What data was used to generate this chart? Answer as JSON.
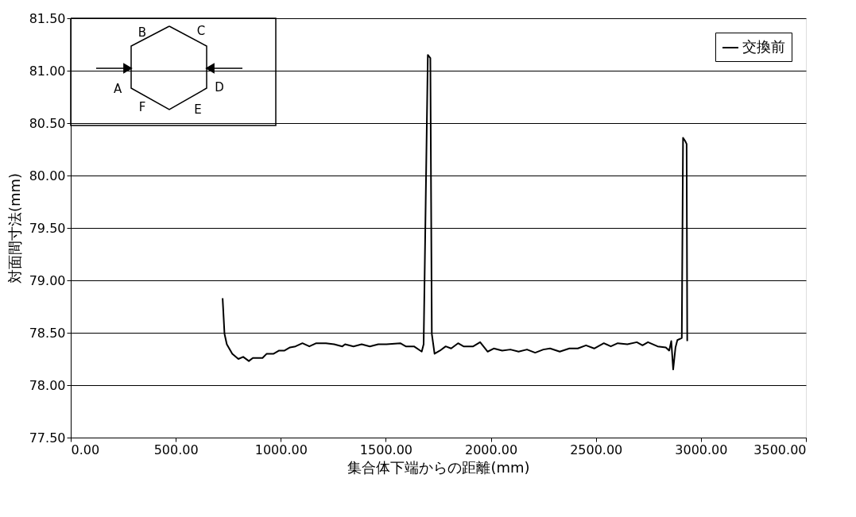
{
  "chart_data": {
    "type": "line",
    "xlabel": "集合体下端からの距離(mm)",
    "ylabel": "対面間寸法(mm)",
    "annotations": [
      "A",
      "B",
      "C",
      "D",
      "E",
      "F"
    ],
    "xlim": [
      0,
      3500
    ],
    "ylim": [
      77.5,
      81.5
    ],
    "xticks": [
      {
        "value": 0,
        "label": "0.00"
      },
      {
        "value": 500,
        "label": "500.00"
      },
      {
        "value": 1000,
        "label": "1000.00"
      },
      {
        "value": 1500,
        "label": "1500.00"
      },
      {
        "value": 2000,
        "label": "2000.00"
      },
      {
        "value": 2500,
        "label": "2500.00"
      },
      {
        "value": 3000,
        "label": "3000.00"
      },
      {
        "value": 3500,
        "label": "3500.00"
      }
    ],
    "yticks": [
      {
        "value": 77.5,
        "label": "77.50"
      },
      {
        "value": 78,
        "label": "78.00"
      },
      {
        "value": 78.5,
        "label": "78.50"
      },
      {
        "value": 79,
        "label": "79.00"
      },
      {
        "value": 79.5,
        "label": "79.50"
      },
      {
        "value": 80,
        "label": "80.00"
      },
      {
        "value": 80.5,
        "label": "80.50"
      },
      {
        "value": 81,
        "label": "81.00"
      },
      {
        "value": 81.5,
        "label": "81.50"
      }
    ],
    "grid": "y",
    "legend": "top right",
    "marker": "none",
    "line_style": "solid",
    "series": [
      {
        "name": "交換前",
        "color": "#000000",
        "x": [
          723,
          732,
          743,
          769,
          798,
          821,
          848,
          867,
          913,
          933,
          966,
          992,
          1018,
          1044,
          1070,
          1103,
          1136,
          1169,
          1215,
          1254,
          1293,
          1306,
          1346,
          1385,
          1424,
          1464,
          1503,
          1569,
          1595,
          1634,
          1671,
          1680,
          1700,
          1712,
          1719,
          1732,
          1758,
          1785,
          1811,
          1844,
          1870,
          1916,
          1949,
          1985,
          2014,
          2054,
          2093,
          2132,
          2172,
          2211,
          2250,
          2282,
          2328,
          2374,
          2414,
          2453,
          2492,
          2538,
          2571,
          2604,
          2650,
          2695,
          2722,
          2748,
          2794,
          2833,
          2849,
          2859,
          2868,
          2879,
          2888,
          2909,
          2915,
          2925,
          2932,
          2935
        ],
        "values": [
          78.83,
          78.49,
          78.39,
          78.3,
          78.25,
          78.27,
          78.23,
          78.26,
          78.26,
          78.3,
          78.3,
          78.33,
          78.33,
          78.36,
          78.37,
          78.4,
          78.37,
          78.4,
          78.4,
          78.39,
          78.37,
          78.39,
          78.37,
          78.39,
          78.37,
          78.39,
          78.39,
          78.4,
          78.37,
          78.37,
          78.32,
          78.39,
          81.15,
          81.12,
          78.49,
          78.3,
          78.33,
          78.37,
          78.35,
          78.4,
          78.37,
          78.37,
          78.41,
          78.32,
          78.35,
          78.33,
          78.34,
          78.32,
          78.34,
          78.31,
          78.34,
          78.35,
          78.32,
          78.35,
          78.35,
          78.38,
          78.35,
          78.4,
          78.37,
          78.4,
          78.39,
          78.41,
          78.38,
          78.41,
          78.37,
          78.36,
          78.33,
          78.42,
          78.15,
          78.36,
          78.43,
          78.45,
          80.36,
          80.33,
          80.3,
          78.42
        ]
      }
    ]
  }
}
